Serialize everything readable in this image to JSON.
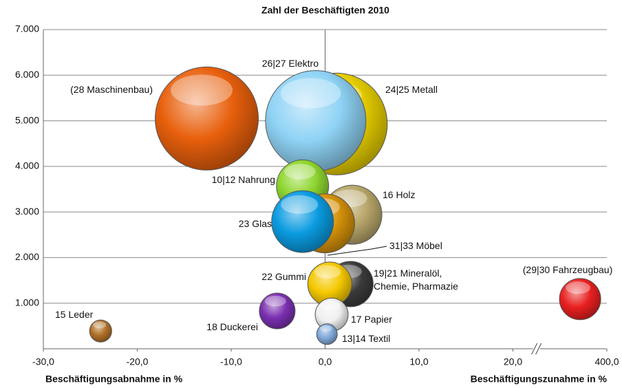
{
  "chart_data": {
    "type": "bubble",
    "title": "Zahl der Beschäftigten 2010",
    "x_label_left": "Beschäftigungsabnahme in %",
    "x_label_right": "Beschäftigungszunahme in %",
    "labels": [
      "(28 Maschinenbau)",
      "24|25 Metall",
      "26|27 Elektro",
      "10|12 Nahrung",
      "16 Holz",
      "31|33 Möbel",
      "23 Glas",
      "19|21 Mineralöl,\nChemie, Pharmazie",
      "22 Gummi",
      "17 Papier",
      "13|14 Textil",
      "18 Duckerei",
      "15 Leder",
      "(29|30 Fahrzeugbau)"
    ],
    "x": [
      -12.6,
      1.2,
      -1.0,
      -2.4,
      2.9,
      0.0,
      -2.4,
      2.7,
      0.5,
      0.7,
      0.2,
      -5.1,
      -23.9,
      381
    ],
    "values": [
      5050,
      4930,
      5000,
      3570,
      2940,
      2750,
      2790,
      1420,
      1420,
      750,
      320,
      830,
      390,
      1090
    ],
    "sizes": [
      5000,
      4870,
      4740,
      1280,
      1640,
      1640,
      1800,
      970,
      910,
      510,
      200,
      600,
      230,
      800
    ],
    "colors": [
      "#e8600c",
      "#e8d000",
      "#8fd3f5",
      "#8ed630",
      "#b8a66a",
      "#d4900a",
      "#0a9be0",
      "#3a3a3a",
      "#f5c800",
      "#f0f0f0",
      "#7fa8d8",
      "#7a2fb0",
      "#b07028",
      "#e82020"
    ],
    "xlim": [
      -30,
      400
    ],
    "xbreak": [
      22.5,
      350
    ],
    "xticks": [
      {
        "value": -30,
        "label": "-30,0"
      },
      {
        "value": -20,
        "label": "-20,0"
      },
      {
        "value": -10,
        "label": "-10,0"
      },
      {
        "value": 0,
        "label": "0,0"
      },
      {
        "value": 10,
        "label": "10,0"
      },
      {
        "value": 20,
        "label": "20,0"
      },
      {
        "value": 400,
        "label": "400,0"
      }
    ],
    "ylim": [
      0,
      7000
    ],
    "yticks": [
      {
        "value": 1000,
        "label": "1.000"
      },
      {
        "value": 2000,
        "label": "2.000"
      },
      {
        "value": 3000,
        "label": "3.000"
      },
      {
        "value": 4000,
        "label": "4.000"
      },
      {
        "value": 5000,
        "label": "5.000"
      },
      {
        "value": 6000,
        "label": "6.000"
      },
      {
        "value": 7000,
        "label": "7.000"
      }
    ],
    "grid": true
  }
}
